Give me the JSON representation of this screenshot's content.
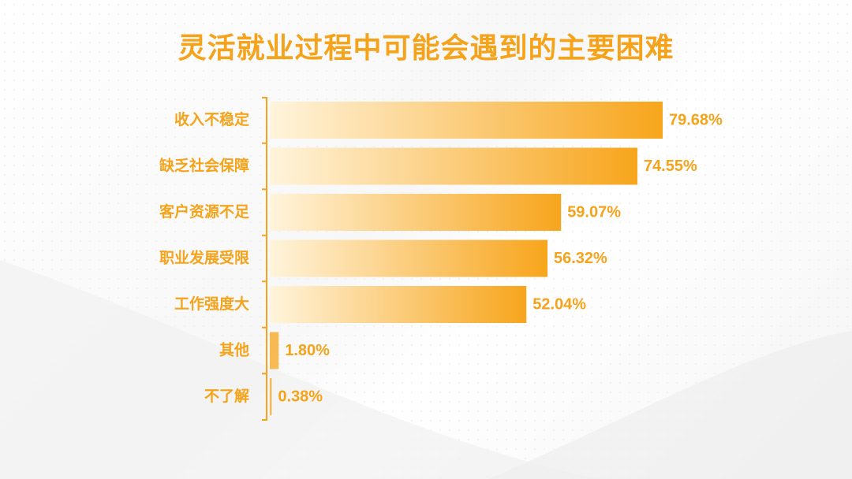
{
  "chart_data": {
    "type": "bar",
    "orientation": "horizontal",
    "title": "灵活就业过程中可能会遇到的主要困难",
    "categories": [
      "收入不稳定",
      "缺乏社会保障",
      "客户资源不足",
      "职业发展受限",
      "工作强度大",
      "其他",
      "不了解"
    ],
    "values": [
      79.68,
      74.55,
      59.07,
      56.32,
      52.04,
      1.8,
      0.38
    ],
    "value_labels": [
      "79.68%",
      "74.55%",
      "59.07%",
      "56.32%",
      "52.04%",
      "1.80%",
      "0.38%"
    ],
    "unit": "%",
    "xlim": [
      0,
      100
    ],
    "grid": false,
    "legend": "none",
    "colors": {
      "bar_start": "#fff4dc",
      "bar_end": "#f7a51c",
      "text": "#f5a31a",
      "axis": "#f5a31a"
    }
  }
}
